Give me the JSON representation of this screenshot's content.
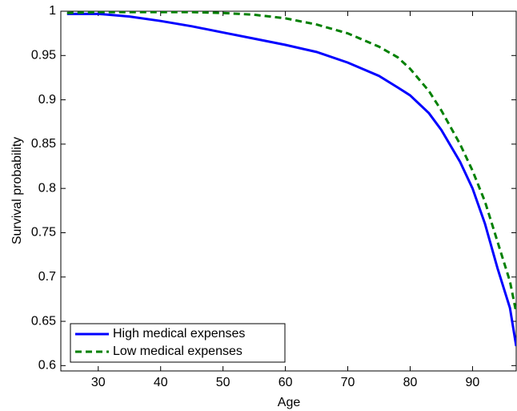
{
  "chart_data": {
    "type": "line",
    "x_label": "Age",
    "y_label": "Survival probability",
    "x": [
      25,
      30,
      35,
      40,
      45,
      50,
      55,
      60,
      65,
      70,
      75,
      78,
      80,
      83,
      85,
      88,
      90,
      92,
      94,
      96,
      97
    ],
    "series": [
      {
        "name": "High medical expenses",
        "color": "#0000ff",
        "dash": false,
        "values": [
          0.997,
          0.997,
          0.994,
          0.989,
          0.983,
          0.976,
          0.969,
          0.962,
          0.954,
          0.942,
          0.927,
          0.914,
          0.905,
          0.885,
          0.866,
          0.83,
          0.8,
          0.76,
          0.71,
          0.665,
          0.622
        ]
      },
      {
        "name": "Low medical expenses",
        "color": "#008000",
        "dash": true,
        "values": [
          0.998,
          0.999,
          0.999,
          0.999,
          0.999,
          0.998,
          0.996,
          0.992,
          0.985,
          0.975,
          0.96,
          0.948,
          0.935,
          0.91,
          0.888,
          0.85,
          0.82,
          0.785,
          0.74,
          0.695,
          0.66
        ]
      }
    ],
    "xlim": [
      24,
      97
    ],
    "xticks": [
      30,
      40,
      50,
      60,
      70,
      80,
      90
    ],
    "ylim": [
      0.594,
      1
    ],
    "yticks": [
      0.6,
      0.65,
      0.7,
      0.75,
      0.8,
      0.85,
      0.9,
      0.95,
      1
    ],
    "legend": "lower left",
    "grid": false
  }
}
